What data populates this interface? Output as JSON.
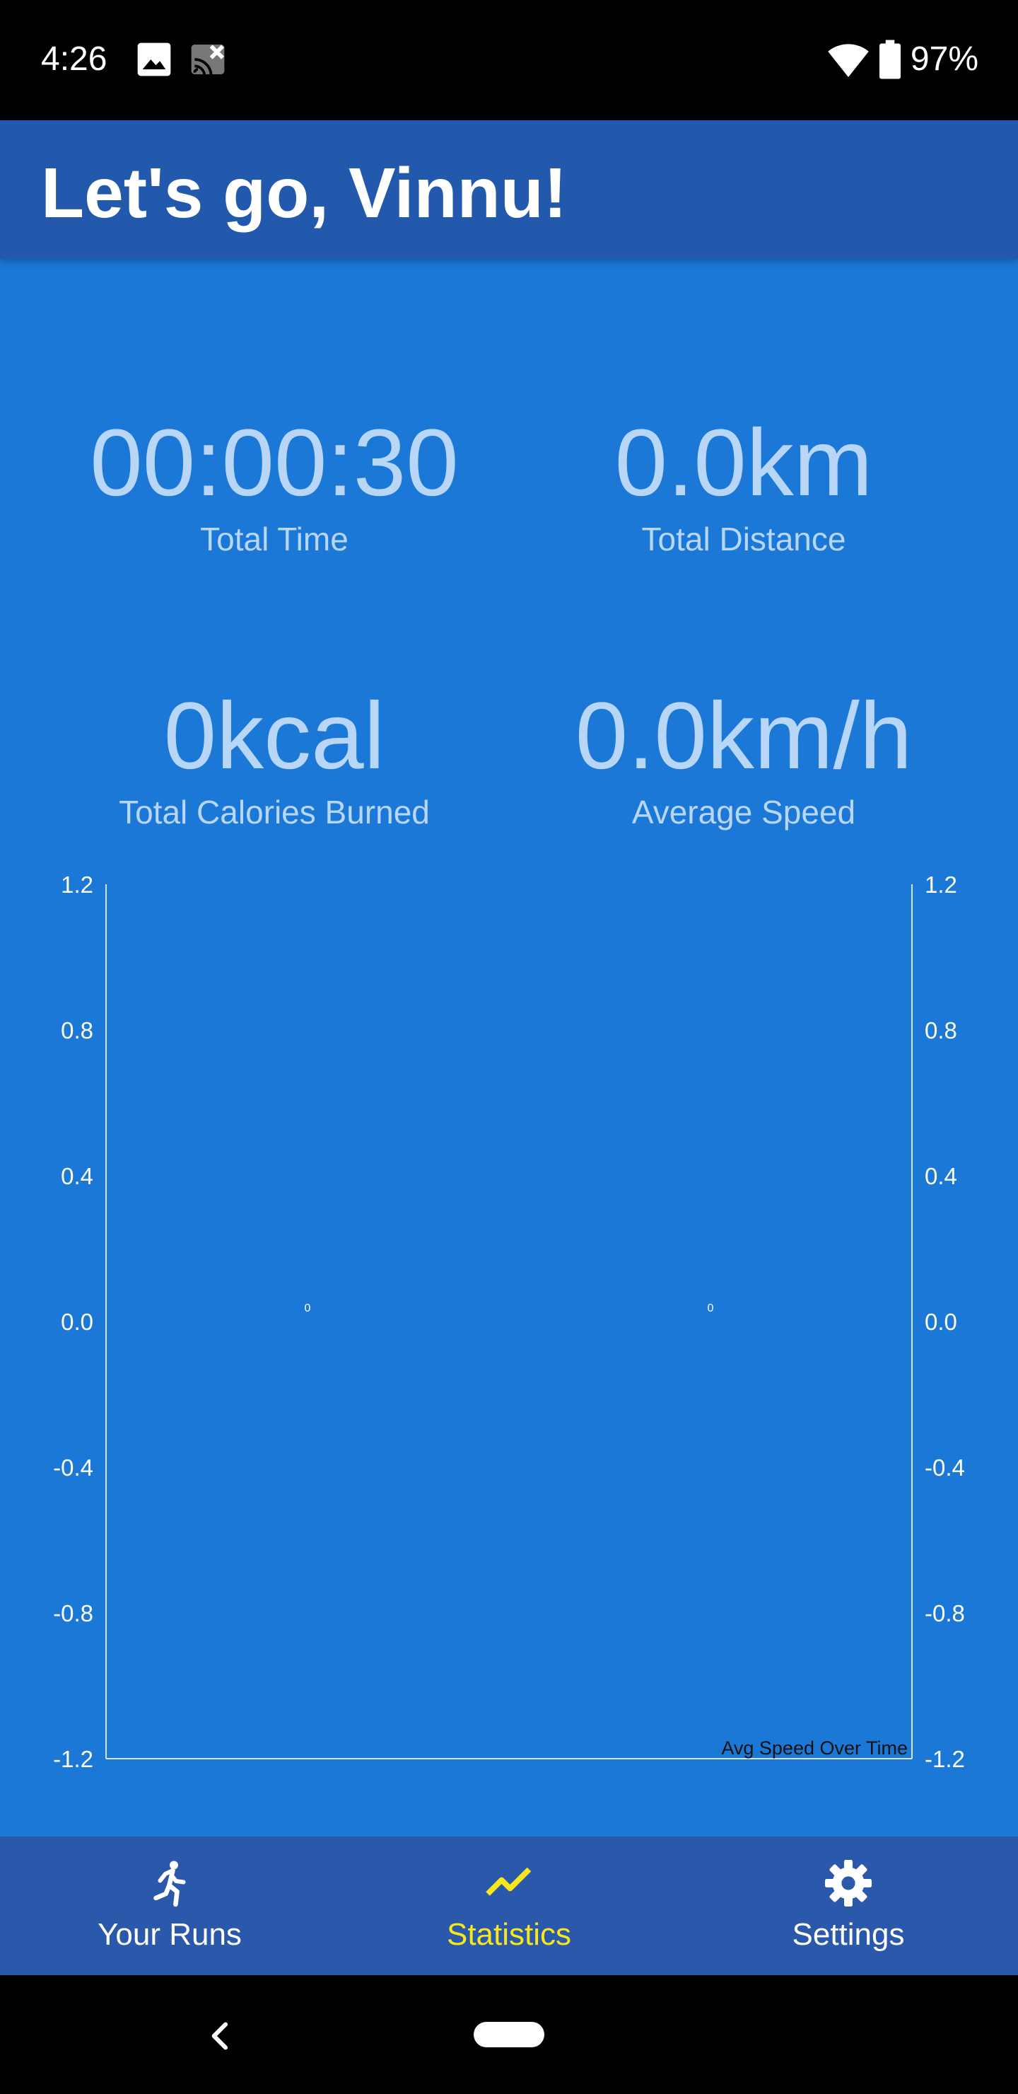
{
  "status_bar": {
    "time": "4:26",
    "icons": [
      "image-icon",
      "cast-off-icon",
      "wifi-icon",
      "battery-icon"
    ],
    "battery": "97%"
  },
  "app_bar": {
    "title": "Let's go, Vinnu!"
  },
  "stats": {
    "total_time": {
      "value": "00:00:30",
      "label": "Total Time"
    },
    "total_distance": {
      "value": "0.0km",
      "label": "Total Distance"
    },
    "total_calories": {
      "value": "0kcal",
      "label": "Total Calories Burned"
    },
    "average_speed": {
      "value": "0.0km/h",
      "label": "Average Speed"
    }
  },
  "chart_data": {
    "type": "bar",
    "description_label": "Avg Speed Over Time",
    "categories": [
      "",
      ""
    ],
    "values": [
      0,
      0
    ],
    "value_labels": [
      "0",
      "0"
    ],
    "yticks": [
      "1.2",
      "0.8",
      "0.4",
      "0.0",
      "-0.4",
      "-0.8",
      "-1.2"
    ],
    "ylim": [
      -1.2,
      1.2
    ],
    "right_axis": true,
    "grid": false
  },
  "colors": {
    "background": "#1b78d6",
    "app_bar": "#2359ad",
    "bottom_nav": "#2a58ab",
    "stat_text": "#b8d6f7",
    "active_nav": "#f8e71c"
  },
  "bottom_nav": {
    "items": [
      {
        "label": "Your Runs",
        "icon": "running-person-icon",
        "active": false
      },
      {
        "label": "Statistics",
        "icon": "trending-line-icon",
        "active": true
      },
      {
        "label": "Settings",
        "icon": "gear-icon",
        "active": false
      }
    ]
  },
  "system_nav": {
    "back_icon": "back-chevron-icon",
    "home": "home-pill"
  }
}
